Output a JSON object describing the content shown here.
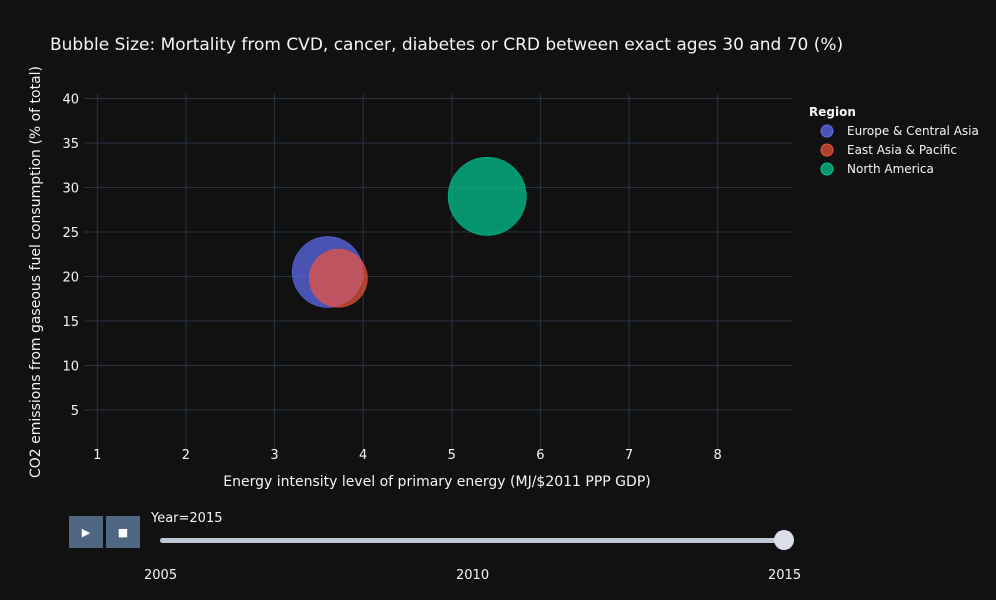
{
  "chart_data": {
    "type": "scatter",
    "title": "Bubble Size: Mortality from CVD, cancer, diabetes or CRD between exact ages 30 and 70 (%)",
    "xlabel": "Energy intensity level of primary energy (MJ/$2011 PPP GDP)",
    "ylabel": "CO2 emissions from gaseous fuel consumption (% of total)",
    "xlim": [
      0.85,
      8.85
    ],
    "ylim": [
      0.5,
      40.5
    ],
    "xticks": [
      "1",
      "2",
      "3",
      "4",
      "5",
      "6",
      "7",
      "8"
    ],
    "yticks": [
      "5",
      "10",
      "15",
      "20",
      "25",
      "30",
      "35",
      "40"
    ],
    "grid": true,
    "legend_title": "Region",
    "legend_position": "top-right",
    "series": [
      {
        "name": "Europe & Central Asia",
        "color": "#636efa",
        "points": [
          {
            "x": 3.6,
            "y": 20.5,
            "size": 19.5
          }
        ]
      },
      {
        "name": "East Asia & Pacific",
        "color": "#ef553b",
        "points": [
          {
            "x": 3.72,
            "y": 19.8,
            "size": 16.0
          }
        ]
      },
      {
        "name": "North America",
        "color": "#00cc96",
        "points": [
          {
            "x": 5.4,
            "y": 29.0,
            "size": 21.5
          }
        ]
      }
    ]
  },
  "animation": {
    "play_icon": "play-icon",
    "stop_icon": "stop-icon",
    "current_value_label": "Year=2015",
    "steps": [
      "2005",
      "2010",
      "2015"
    ],
    "current_value": 2015,
    "range": [
      2005,
      2015
    ]
  }
}
